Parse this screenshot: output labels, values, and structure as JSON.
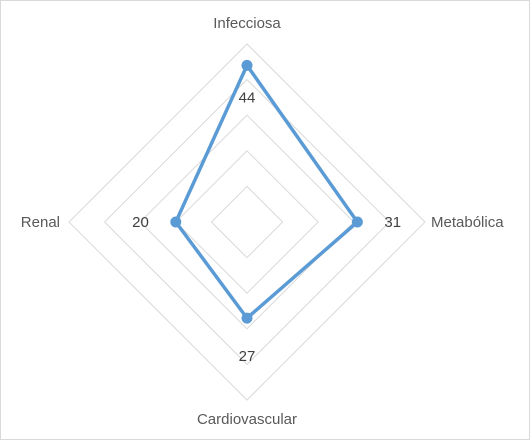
{
  "chart_data": {
    "type": "radar",
    "categories": [
      "Infecciosa",
      "Metabólica",
      "Cardiovascular",
      "Renal"
    ],
    "values": [
      44,
      31,
      27,
      20
    ],
    "data_labels": [
      "44",
      "31",
      "27",
      "20"
    ],
    "rlim": [
      0,
      50
    ],
    "ring_step": 10,
    "grid": true,
    "legend": "none",
    "series_color": "#5b9bd5",
    "grid_color": "#d9d9d9"
  }
}
